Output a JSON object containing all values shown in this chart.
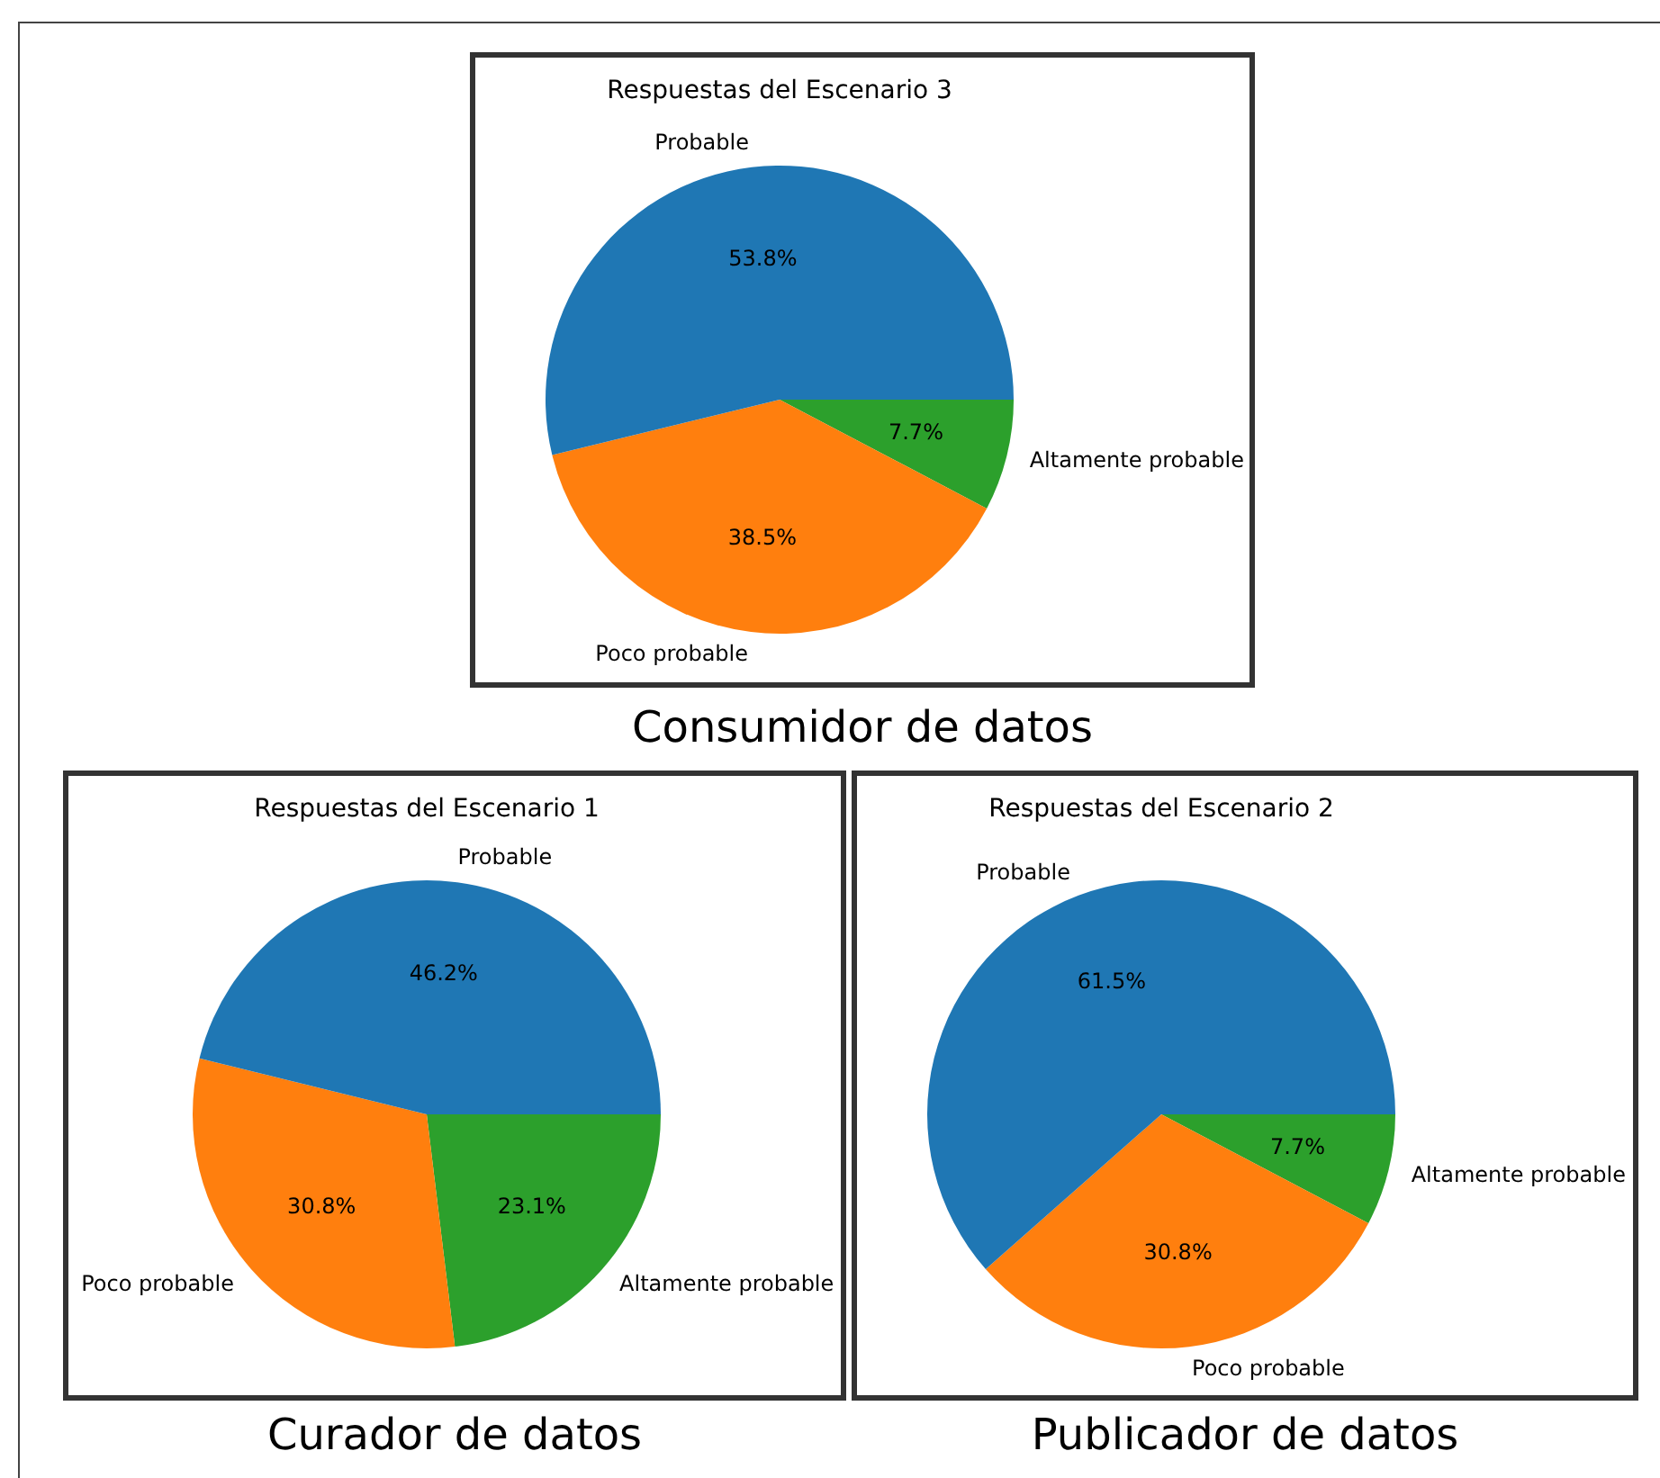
{
  "chart_data": [
    {
      "type": "pie",
      "title": "Respuestas del Escenario 3",
      "categories": [
        "Probable",
        "Poco probable",
        "Altamente probable"
      ],
      "values": [
        53.8,
        38.5,
        7.7
      ],
      "colors": [
        "#1f77b4",
        "#ff7f0e",
        "#2ca02c"
      ],
      "value_labels": [
        "53.8%",
        "38.5%",
        "7.7%"
      ],
      "legend": false,
      "annotations": [
        "Consumidor de datos"
      ]
    },
    {
      "type": "pie",
      "title": "Respuestas del Escenario 1",
      "categories": [
        "Probable",
        "Poco probable",
        "Altamente probable"
      ],
      "values": [
        46.2,
        30.8,
        23.1
      ],
      "colors": [
        "#1f77b4",
        "#ff7f0e",
        "#2ca02c"
      ],
      "value_labels": [
        "46.2%",
        "30.8%",
        "23.1%"
      ],
      "legend": false,
      "annotations": [
        "Curador de datos"
      ]
    },
    {
      "type": "pie",
      "title": "Respuestas del Escenario 2",
      "categories": [
        "Probable",
        "Poco probable",
        "Altamente probable"
      ],
      "values": [
        61.5,
        30.8,
        7.7
      ],
      "colors": [
        "#1f77b4",
        "#ff7f0e",
        "#2ca02c"
      ],
      "value_labels": [
        "61.5%",
        "30.8%",
        "7.7%"
      ],
      "legend": false,
      "annotations": [
        "Publicador de datos"
      ]
    }
  ]
}
